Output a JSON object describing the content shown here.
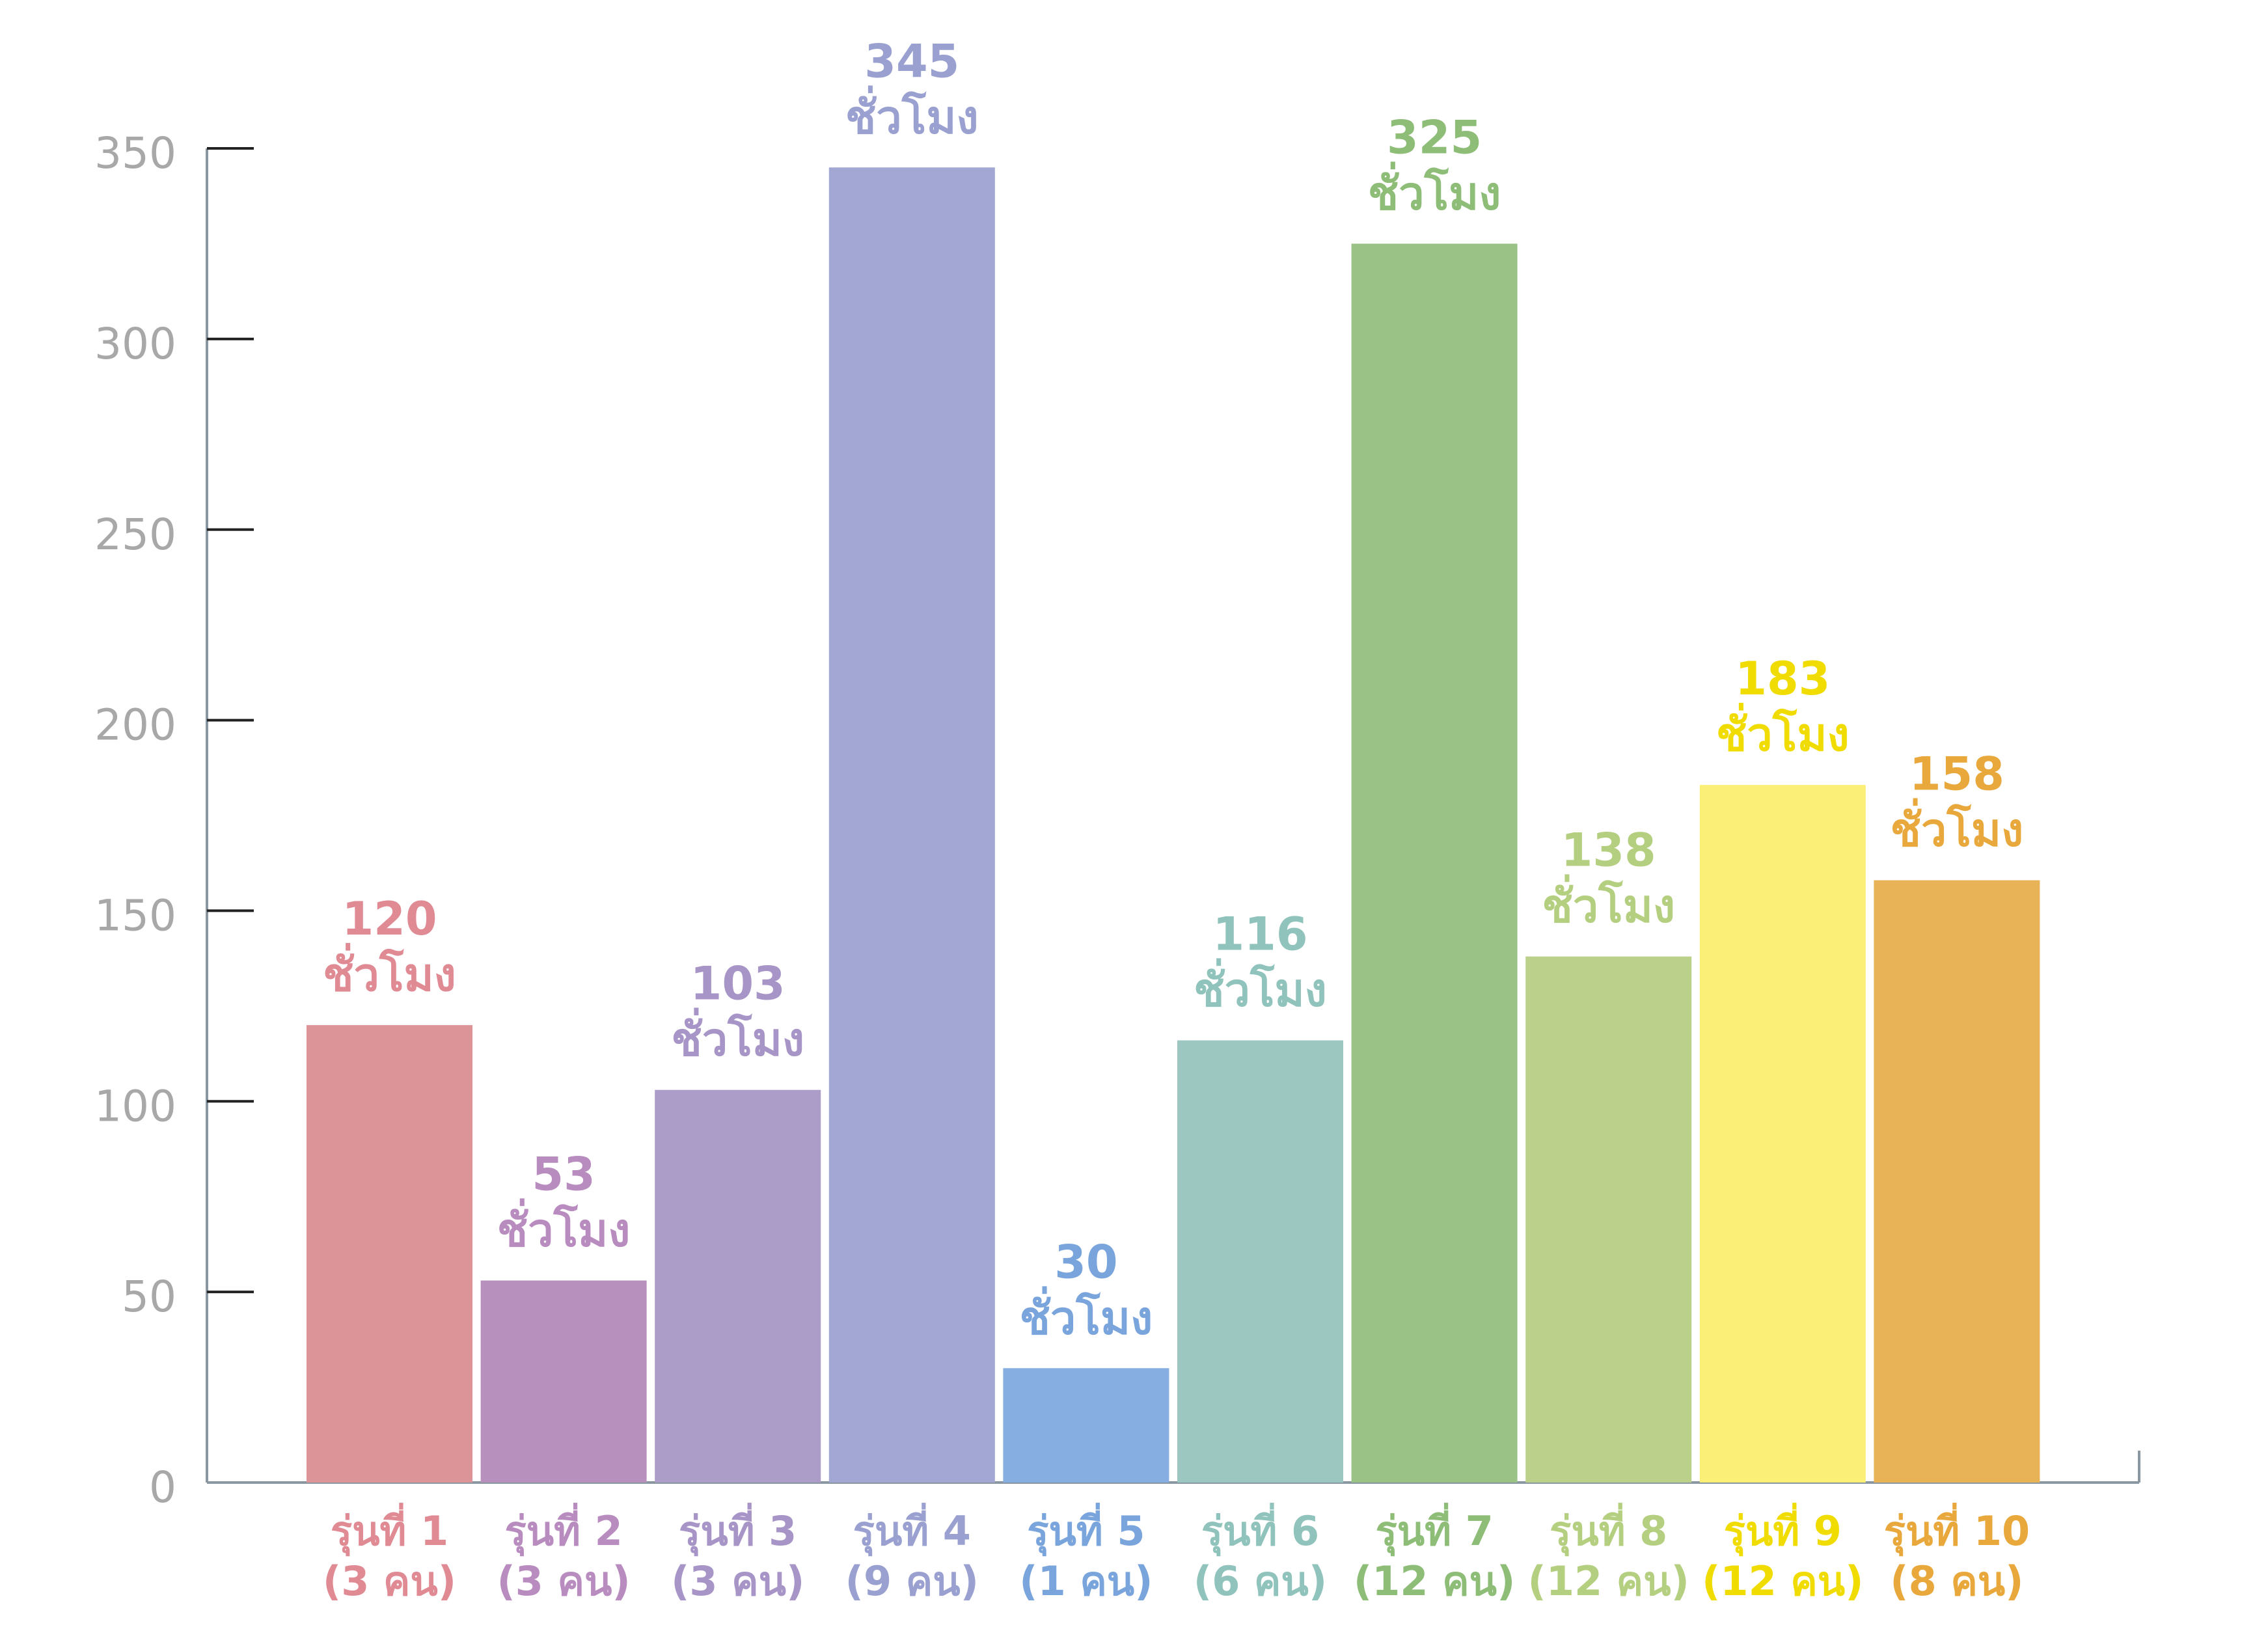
{
  "chart_data": {
    "type": "bar",
    "categories": [
      [
        "รุ่นที่ 1",
        "(3 คน)"
      ],
      [
        "รุ่นที่ 2",
        "(3 คน)"
      ],
      [
        "รุ่นที่ 3",
        "(3 คน)"
      ],
      [
        "รุ่นที่ 4",
        "(9 คน)"
      ],
      [
        "รุ่นที่ 5",
        "(1 คน)"
      ],
      [
        "รุ่นที่ 6",
        "(6 คน)"
      ],
      [
        "รุ่นที่ 7",
        "(12 คน)"
      ],
      [
        "รุ่นที่ 8",
        "(12 คน)"
      ],
      [
        "รุ่นที่ 9",
        "(12 คน)"
      ],
      [
        "รุ่นที่ 10",
        "(8 คน)"
      ]
    ],
    "values": [
      120,
      53,
      103,
      345,
      30,
      116,
      325,
      138,
      183,
      158
    ],
    "value_labels": [
      [
        "120",
        "ชั่วโมง"
      ],
      [
        "53",
        "ชั่วโมง"
      ],
      [
        "103",
        "ชั่วโมง"
      ],
      [
        "345",
        "ชั่วโมง"
      ],
      [
        "30",
        "ชั่วโมง"
      ],
      [
        "116",
        "ชั่วโมง"
      ],
      [
        "325",
        "ชั่วโมง"
      ],
      [
        "138",
        "ชั่วโมง"
      ],
      [
        "183",
        "ชั่วโมง"
      ],
      [
        "158",
        "ชั่วโมง"
      ]
    ],
    "colors": [
      "#dc9499",
      "#b890bd",
      "#ab9cc8",
      "#a2a8d3",
      "#86aee0",
      "#9cc7c0",
      "#9ac186",
      "#bbd08a",
      "#fcef78",
      "#e8b257"
    ],
    "label_colors": [
      "#e08a94",
      "#b98cc0",
      "#a895c7",
      "#9aa1d0",
      "#7aa5dc",
      "#8fc3bb",
      "#8ebd78",
      "#b5cf80",
      "#f0dc00",
      "#e8a83c"
    ],
    "ylim": [
      0,
      350
    ],
    "yticks": [
      0,
      50,
      100,
      150,
      200,
      250,
      300,
      350
    ],
    "grid": false
  }
}
